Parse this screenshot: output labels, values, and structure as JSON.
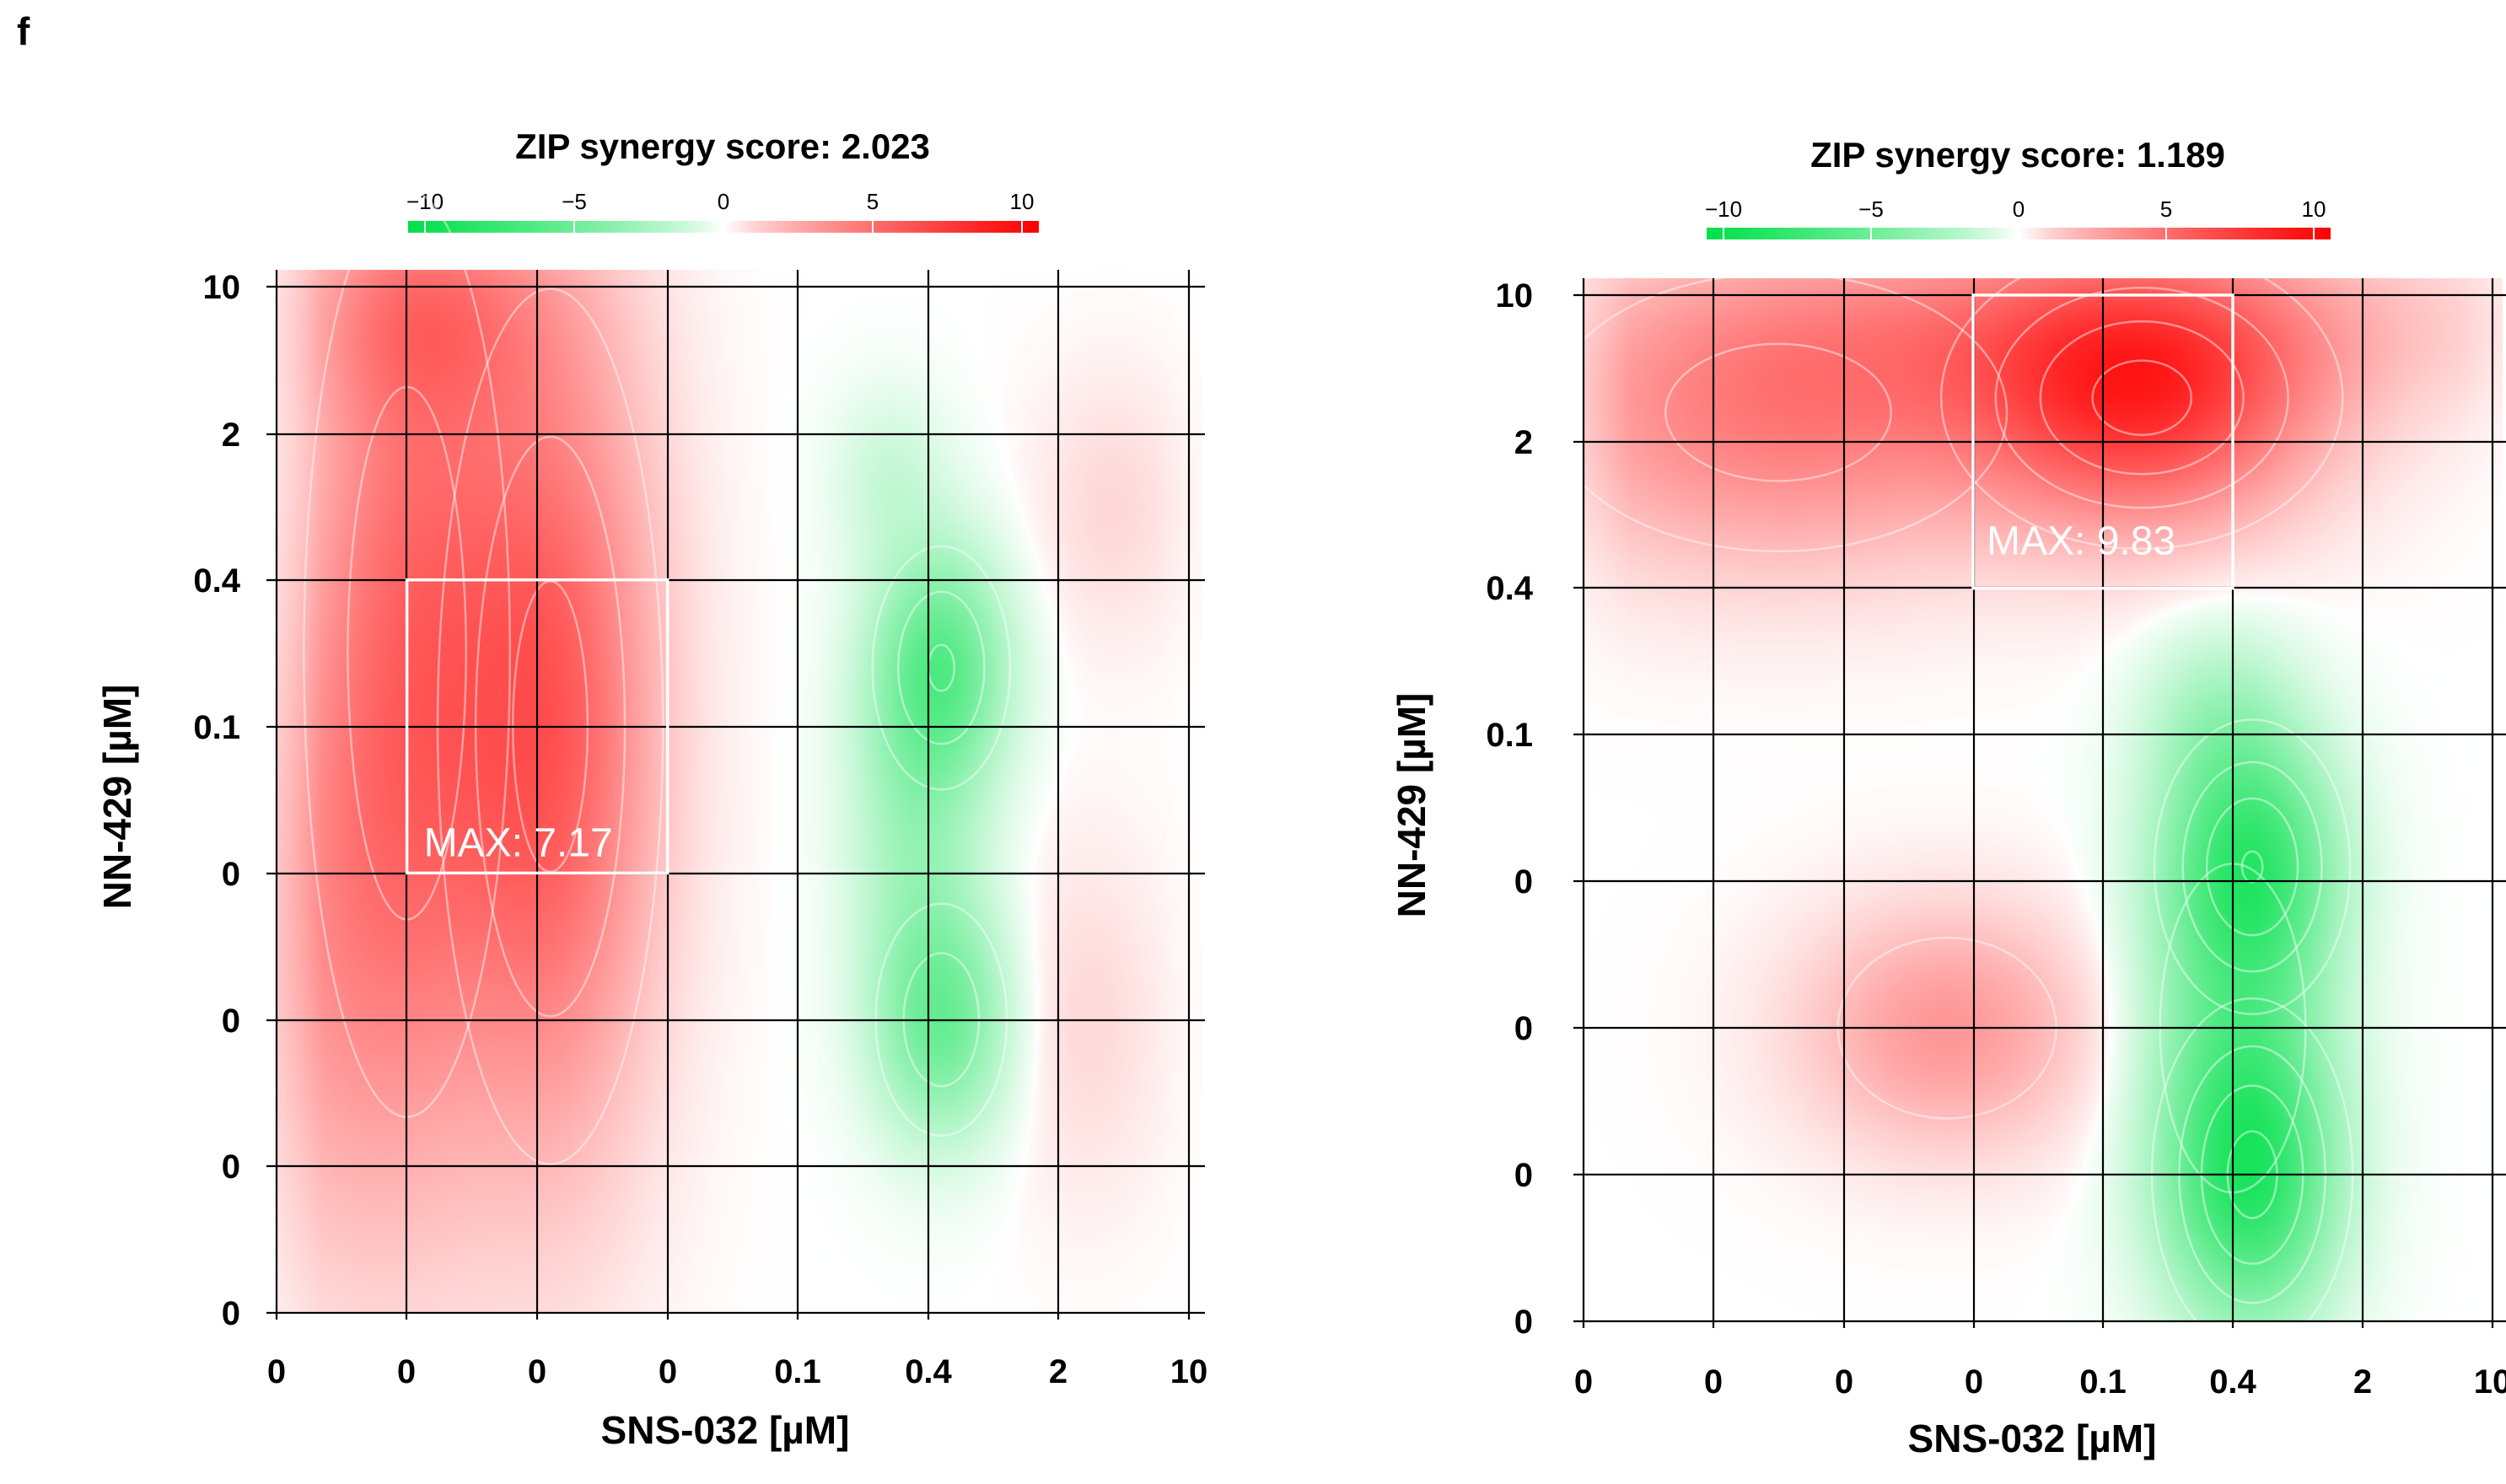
{
  "panel_label": "f",
  "colors": {
    "negative": "#00e04a",
    "zero": "#ffffff",
    "positive": "#ff0000",
    "grid": "#000000",
    "contour": "#ffffff"
  },
  "chart_data": [
    {
      "type": "heatmap",
      "title": "ZIP synergy score: 2.023",
      "xlabel": "SNS-032 [µM]",
      "ylabel": "NN-429 [µM]",
      "x_ticks": [
        "0",
        "0",
        "0",
        "0",
        "0.1",
        "0.4",
        "2",
        "10"
      ],
      "y_ticks": [
        "10",
        "2",
        "0.4",
        "0.1",
        "0",
        "0",
        "0",
        "0"
      ],
      "colorbar": {
        "ticks": [
          "−10",
          "−5",
          "0",
          "5",
          "10"
        ],
        "range": [
          -10,
          10
        ]
      },
      "max_label": "MAX: 7.17",
      "max_region": {
        "x_range": [
          1,
          3
        ],
        "y_range": [
          2,
          4
        ]
      },
      "synergy_peaks": [
        {
          "x": 1.0,
          "y": 2.5,
          "value": 4.5,
          "sx": 0.55,
          "sy": 2.2
        },
        {
          "x": 2.1,
          "y": 3.0,
          "value": 5.5,
          "sx": 0.55,
          "sy": 1.9
        },
        {
          "x": 1.2,
          "y": 0.2,
          "value": 2.5,
          "sx": 0.7,
          "sy": 0.5
        },
        {
          "x": 0.3,
          "y": 4.5,
          "value": 2.0,
          "sx": 0.6,
          "sy": 1.5
        },
        {
          "x": 5.1,
          "y": 2.6,
          "value": -5.0,
          "sx": 0.35,
          "sy": 0.55
        },
        {
          "x": 5.1,
          "y": 5.0,
          "value": -4.5,
          "sx": 0.35,
          "sy": 0.55
        },
        {
          "x": 4.9,
          "y": 3.6,
          "value": -2.5,
          "sx": 0.35,
          "sy": 0.9
        },
        {
          "x": 4.7,
          "y": 1.3,
          "value": -1.2,
          "sx": 0.3,
          "sy": 0.4
        },
        {
          "x": 6.4,
          "y": 1.5,
          "value": 0.8,
          "sx": 0.4,
          "sy": 0.6
        },
        {
          "x": 6.2,
          "y": 5.0,
          "value": 0.8,
          "sx": 0.4,
          "sy": 0.8
        }
      ]
    },
    {
      "type": "heatmap",
      "title": "ZIP synergy score: 1.189",
      "xlabel": "SNS-032 [µM]",
      "ylabel": "NN-429 [µM]",
      "x_ticks": [
        "0",
        "0",
        "0",
        "0",
        "0.1",
        "0.4",
        "2",
        "10"
      ],
      "y_ticks": [
        "10",
        "2",
        "0.4",
        "0.1",
        "0",
        "0",
        "0",
        "0"
      ],
      "colorbar": {
        "ticks": [
          "−10",
          "−5",
          "0",
          "5",
          "10"
        ],
        "range": [
          -10,
          10
        ]
      },
      "max_label": "MAX: 9.83",
      "max_region": {
        "x_range": [
          3,
          5
        ],
        "y_range": [
          0,
          2
        ]
      },
      "synergy_peaks": [
        {
          "x": 4.3,
          "y": 0.7,
          "value": 7.0,
          "sx": 0.9,
          "sy": 0.6
        },
        {
          "x": 1.5,
          "y": 0.8,
          "value": 4.0,
          "sx": 1.3,
          "sy": 0.7
        },
        {
          "x": 4.0,
          "y": 0.2,
          "value": 2.5,
          "sx": 2.0,
          "sy": 0.45
        },
        {
          "x": 2.8,
          "y": 5.0,
          "value": 3.0,
          "sx": 0.75,
          "sy": 0.55
        },
        {
          "x": 5.15,
          "y": 3.9,
          "value": -6.5,
          "sx": 0.45,
          "sy": 0.6
        },
        {
          "x": 5.15,
          "y": 6.0,
          "value": -7.0,
          "sx": 0.45,
          "sy": 0.7
        },
        {
          "x": 5.0,
          "y": 5.0,
          "value": -3.0,
          "sx": 0.5,
          "sy": 1.0
        },
        {
          "x": 4.9,
          "y": 2.9,
          "value": -2.0,
          "sx": 0.4,
          "sy": 0.45
        }
      ]
    }
  ]
}
